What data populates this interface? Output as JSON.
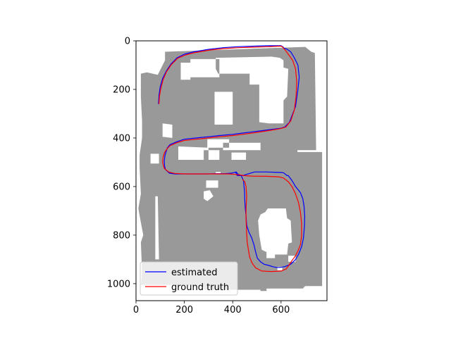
{
  "chart_data": {
    "type": "line",
    "title": "",
    "xlabel": "",
    "ylabel": "",
    "xlim": [
      0,
      790
    ],
    "ylim": [
      1070,
      0
    ],
    "y_inverted": true,
    "grid": false,
    "legend": {
      "placement": "lower-left",
      "entries": [
        "estimated",
        "ground truth"
      ]
    },
    "x_ticks": [
      0,
      200,
      400,
      600
    ],
    "y_ticks": [
      0,
      200,
      400,
      600,
      800,
      1000
    ],
    "background_map": {
      "description_color": "#999999",
      "outline": [
        [
          120,
          45
        ],
        [
          700,
          25
        ],
        [
          725,
          45
        ],
        [
          740,
          50
        ],
        [
          745,
          450
        ],
        [
          668,
          450
        ],
        [
          668,
          458
        ],
        [
          770,
          458
        ],
        [
          770,
          1010
        ],
        [
          700,
          1010
        ],
        [
          690,
          1020
        ],
        [
          540,
          1020
        ],
        [
          540,
          1030
        ],
        [
          515,
          1030
        ],
        [
          515,
          1025
        ],
        [
          280,
          1025
        ],
        [
          280,
          1015
        ],
        [
          198,
          1005
        ],
        [
          20,
          1005
        ],
        [
          25,
          950
        ],
        [
          20,
          830
        ],
        [
          30,
          800
        ],
        [
          15,
          720
        ],
        [
          10,
          690
        ],
        [
          20,
          630
        ],
        [
          15,
          520
        ],
        [
          15,
          470
        ],
        [
          25,
          400
        ],
        [
          25,
          330
        ],
        [
          20,
          230
        ],
        [
          20,
          135
        ],
        [
          45,
          130
        ],
        [
          90,
          140
        ],
        [
          120,
          80
        ]
      ],
      "holes": [
        [
          [
            185,
            90
          ],
          [
            225,
            90
          ],
          [
            225,
            160
          ],
          [
            185,
            160
          ]
        ],
        [
          [
            225,
            75
          ],
          [
            345,
            75
          ],
          [
            345,
            150
          ],
          [
            225,
            150
          ]
        ],
        [
          [
            330,
            70
          ],
          [
            560,
            65
          ],
          [
            595,
            70
          ],
          [
            610,
            80
          ],
          [
            610,
            110
          ],
          [
            630,
            115
          ],
          [
            625,
            230
          ],
          [
            610,
            245
          ],
          [
            610,
            340
          ],
          [
            550,
            340
          ],
          [
            510,
            335
          ],
          [
            510,
            180
          ],
          [
            470,
            180
          ],
          [
            470,
            135
          ],
          [
            340,
            135
          ],
          [
            330,
            115
          ]
        ],
        [
          [
            325,
            210
          ],
          [
            400,
            210
          ],
          [
            400,
            345
          ],
          [
            325,
            345
          ]
        ],
        [
          [
            110,
            340
          ],
          [
            150,
            345
          ],
          [
            150,
            400
          ],
          [
            110,
            395
          ]
        ],
        [
          [
            295,
            405
          ],
          [
            385,
            405
          ],
          [
            385,
            440
          ],
          [
            295,
            440
          ]
        ],
        [
          [
            360,
            420
          ],
          [
            515,
            420
          ],
          [
            515,
            450
          ],
          [
            360,
            450
          ]
        ],
        [
          [
            60,
            465
          ],
          [
            95,
            465
          ],
          [
            95,
            505
          ],
          [
            60,
            505
          ]
        ],
        [
          [
            175,
            435
          ],
          [
            300,
            440
          ],
          [
            300,
            490
          ],
          [
            175,
            490
          ]
        ],
        [
          [
            280,
            450
          ],
          [
            345,
            450
          ],
          [
            345,
            490
          ],
          [
            280,
            490
          ]
        ],
        [
          [
            395,
            460
          ],
          [
            455,
            460
          ],
          [
            455,
            490
          ],
          [
            395,
            490
          ]
        ],
        [
          [
            290,
            575
          ],
          [
            340,
            575
          ],
          [
            340,
            605
          ],
          [
            290,
            605
          ]
        ],
        [
          [
            280,
            620
          ],
          [
            305,
            615
          ],
          [
            320,
            640
          ],
          [
            295,
            660
          ],
          [
            280,
            650
          ]
        ],
        [
          [
            545,
            690
          ],
          [
            620,
            690
          ],
          [
            625,
            730
          ],
          [
            640,
            740
          ],
          [
            645,
            830
          ],
          [
            630,
            835
          ],
          [
            625,
            880
          ],
          [
            575,
            880
          ],
          [
            575,
            895
          ],
          [
            540,
            895
          ],
          [
            540,
            870
          ],
          [
            520,
            860
          ],
          [
            510,
            800
          ],
          [
            505,
            740
          ],
          [
            515,
            715
          ],
          [
            535,
            705
          ]
        ],
        [
          [
            630,
            885
          ],
          [
            660,
            885
          ],
          [
            660,
            910
          ],
          [
            630,
            910
          ]
        ],
        [
          [
            585,
            930
          ],
          [
            605,
            930
          ],
          [
            605,
            945
          ],
          [
            585,
            945
          ]
        ],
        [
          [
            80,
            640
          ],
          [
            90,
            640
          ],
          [
            95,
            900
          ],
          [
            80,
            900
          ]
        ],
        [
          [
            330,
            540
          ],
          [
            350,
            540
          ],
          [
            350,
            545
          ],
          [
            330,
            545
          ]
        ]
      ]
    },
    "series": [
      {
        "name": "estimated",
        "color": "#0000ff",
        "x": [
          93,
          95,
          100,
          110,
          125,
          145,
          170,
          200,
          240,
          300,
          360,
          420,
          480,
          540,
          580,
          600,
          608,
          612,
          620,
          640,
          655,
          670,
          675,
          670,
          660,
          635,
          615,
          605,
          600,
          560,
          520,
          480,
          440,
          400,
          345,
          300,
          250,
          200,
          170,
          140,
          130,
          125,
          120,
          117,
          118,
          122,
          138,
          160,
          200,
          245,
          290,
          340,
          370,
          395,
          415,
          418,
          415,
          420,
          440,
          490,
          540,
          575,
          600,
          610,
          625,
          630,
          645,
          660,
          680,
          690,
          695,
          698,
          697,
          693,
          686,
          680,
          672,
          660,
          640,
          615,
          595,
          580,
          565,
          550,
          530,
          515,
          502,
          495,
          488,
          478,
          468,
          458,
          455,
          452,
          450,
          449,
          447,
          445,
          440,
          435,
          425,
          410
        ],
        "y": [
          260,
          225,
          190,
          155,
          125,
          95,
          70,
          55,
          45,
          35,
          28,
          24,
          22,
          20,
          20,
          20,
          25,
          30,
          32,
          45,
          70,
          100,
          150,
          200,
          270,
          335,
          355,
          358,
          360,
          365,
          370,
          375,
          380,
          385,
          390,
          395,
          400,
          405,
          415,
          428,
          440,
          455,
          470,
          495,
          515,
          530,
          545,
          548,
          548,
          548,
          548,
          547,
          547,
          545,
          540,
          545,
          550,
          555,
          555,
          540,
          540,
          541,
          542,
          543,
          555,
          555,
          575,
          600,
          625,
          650,
          680,
          720,
          760,
          810,
          845,
          860,
          880,
          900,
          920,
          930,
          933,
          933,
          930,
          925,
          920,
          910,
          895,
          870,
          840,
          810,
          790,
          760,
          720,
          690,
          660,
          620,
          600,
          578,
          565,
          555,
          550,
          542
        ]
      },
      {
        "name": "ground truth",
        "color": "#ff0000",
        "x": [
          95,
          97,
          103,
          112,
          126,
          146,
          172,
          205,
          245,
          305,
          365,
          425,
          485,
          545,
          590,
          600,
          605,
          615,
          630,
          648,
          660,
          665,
          662,
          655,
          640,
          620,
          595,
          560,
          520,
          480,
          440,
          400,
          345,
          300,
          250,
          200,
          168,
          140,
          128,
          118,
          112,
          110,
          117,
          135,
          160,
          200,
          250,
          300,
          350,
          385,
          410,
          430,
          445,
          480,
          540,
          590,
          610,
          630,
          645,
          660,
          672,
          680,
          685,
          685,
          680,
          670,
          660,
          645,
          632,
          620,
          600,
          560,
          520,
          495,
          480,
          470,
          465,
          460,
          457,
          455,
          455,
          458,
          455,
          450,
          440
        ],
        "y": [
          260,
          228,
          195,
          160,
          128,
          98,
          72,
          58,
          48,
          38,
          32,
          28,
          26,
          24,
          22,
          22,
          24,
          35,
          55,
          80,
          115,
          170,
          230,
          285,
          330,
          355,
          362,
          368,
          374,
          380,
          385,
          390,
          395,
          400,
          405,
          410,
          420,
          432,
          445,
          460,
          480,
          500,
          525,
          540,
          546,
          548,
          548,
          548,
          548,
          548,
          550,
          552,
          555,
          557,
          558,
          560,
          565,
          580,
          600,
          630,
          665,
          705,
          750,
          800,
          840,
          865,
          885,
          905,
          925,
          940,
          948,
          950,
          948,
          935,
          915,
          890,
          860,
          830,
          780,
          730,
          690,
          640,
          600,
          580,
          570
        ]
      }
    ]
  }
}
